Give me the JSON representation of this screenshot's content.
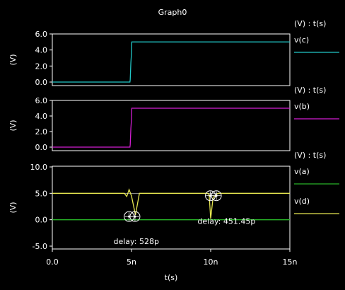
{
  "title": "Graph0",
  "colors": {
    "background": "#000000",
    "frame": "#ffffff",
    "text": "#ffffff",
    "grid": "#ffffff"
  },
  "chart_data": [
    {
      "type": "line",
      "ylabel": "(V)",
      "ylim": [
        0,
        6
      ],
      "yticks": [
        "0.0",
        "2.0",
        "4.0",
        "6.0"
      ],
      "yticks_v": [
        0,
        2,
        4,
        6
      ],
      "xlim": [
        0,
        15
      ],
      "legend_title": "(V) : t(s)",
      "legend_placement": "right",
      "series": [
        {
          "name": "v(c)",
          "color": "#22c8c8",
          "x": [
            0,
            4.9,
            4.92,
            4.96,
            5.0,
            5.02,
            15
          ],
          "y": [
            0,
            0,
            0.3,
            2.4,
            3.6,
            5.0,
            5.0
          ]
        }
      ]
    },
    {
      "type": "line",
      "ylabel": "(V)",
      "ylim": [
        0,
        6
      ],
      "yticks": [
        "0.0",
        "2.0",
        "4.0",
        "6.0"
      ],
      "yticks_v": [
        0,
        2,
        4,
        6
      ],
      "xlim": [
        0,
        15
      ],
      "legend_title": "(V) : t(s)",
      "legend_placement": "right",
      "series": [
        {
          "name": "v(b)",
          "color": "#d21ed2",
          "x": [
            0,
            4.9,
            4.92,
            4.96,
            5.0,
            5.02,
            15
          ],
          "y": [
            0,
            0,
            0.3,
            2.4,
            3.6,
            5.0,
            5.0
          ]
        }
      ]
    },
    {
      "type": "line",
      "ylabel": "(V)",
      "ylim": [
        -5,
        10
      ],
      "yticks": [
        "-5.0",
        "0.0",
        "5.0",
        "10.0"
      ],
      "yticks_v": [
        -5,
        0,
        5,
        10
      ],
      "xlim": [
        0,
        15
      ],
      "xlabel": "t(s)",
      "xticks": [
        "0.0",
        "5n",
        "10n",
        "15n"
      ],
      "xticks_v": [
        0,
        5,
        10,
        15
      ],
      "legend_title": "(V) : t(s)",
      "legend_placement": "right",
      "hgrid": [
        5,
        0
      ],
      "series": [
        {
          "name": "v(a)",
          "color": "#28b428",
          "x": [
            0,
            15
          ],
          "y": [
            0,
            0
          ]
        },
        {
          "name": "v(d)",
          "color": "#e6e650",
          "x": [
            0,
            4.55,
            4.7,
            4.85,
            5.0,
            5.25,
            5.5,
            9.8,
            9.9,
            10.0,
            10.15,
            10.45,
            15
          ],
          "y": [
            5,
            5,
            4.4,
            5.7,
            4.5,
            0.9,
            5,
            5,
            4.8,
            0.2,
            4.2,
            5,
            5
          ]
        }
      ],
      "markers": [
        {
          "x": 4.85,
          "y": 0.6
        },
        {
          "x": 5.22,
          "y": 0.6
        },
        {
          "x": 9.98,
          "y": 4.55
        },
        {
          "x": 10.36,
          "y": 4.55
        }
      ],
      "annotations": [
        {
          "text": "delay: 528p",
          "x": 5.3,
          "y": -4.6
        },
        {
          "text": "delay: 451.45p",
          "x": 11.0,
          "y": -0.8
        }
      ]
    }
  ]
}
